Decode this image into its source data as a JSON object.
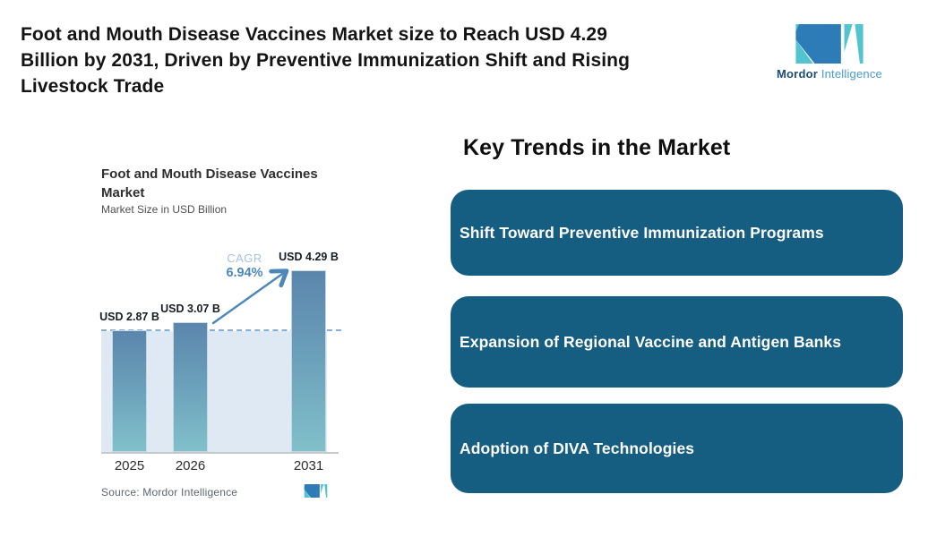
{
  "header": {
    "title": "Foot and Mouth Disease Vaccines Market size to Reach USD 4.29\nBillion by 2031, Driven by Preventive Immunization Shift and Rising\nLivestock Trade",
    "brand": {
      "name_bold": "Mordor",
      "name_light": "Intelligence"
    }
  },
  "chart": {
    "title": "Foot and Mouth Disease Vaccines\nMarket",
    "subtitle": "Market Size in USD Billion",
    "cagr_label": "CAGR",
    "cagr_value": "6.94%",
    "source": "Source: Mordor Intelligence"
  },
  "chart_data": {
    "type": "bar",
    "categories": [
      "2025",
      "2026",
      "2031"
    ],
    "values": [
      2.87,
      3.07,
      4.29
    ],
    "value_labels": [
      "USD 2.87 B",
      "USD 3.07 B",
      "USD 4.29 B"
    ],
    "title": "Foot and Mouth Disease Vaccines Market",
    "subtitle": "Market Size in USD Billion",
    "xlabel": "",
    "ylabel": "Market Size in USD Billion",
    "ylim": [
      0,
      4.5
    ],
    "grid": false,
    "legend": false,
    "reference_line_value": 2.87,
    "annotations": [
      {
        "type": "cagr-arrow",
        "label": "CAGR",
        "value": "6.94%",
        "from_category": "2026",
        "to_category": "2031"
      }
    ]
  },
  "trends": {
    "heading": "Key Trends in the Market",
    "items": [
      "Shift Toward Preventive Immunization Programs",
      "Expansion of Regional Vaccine and Antigen Banks",
      "Adoption of DIVA Technologies"
    ]
  },
  "colors": {
    "brand_blue": "#2e7cb7",
    "brand_teal": "#54c3d0",
    "brand_dark": "#1c4d77",
    "brand_light_text": "#4a9ad0",
    "card_bg": "#155e81",
    "card_text": "#ffffff",
    "bar_top": "#5b86ac",
    "bar_bottom": "#81c0ca",
    "band_bg": "#dee9f3",
    "dashed_line": "#85aed2",
    "arrow": "#4d87b9",
    "cagr_label": "#a5c3de",
    "cagr_value": "#4d87b9",
    "axis_line": "#c5c8cb",
    "title_text": "#141414",
    "source_text": "#5c6670"
  }
}
